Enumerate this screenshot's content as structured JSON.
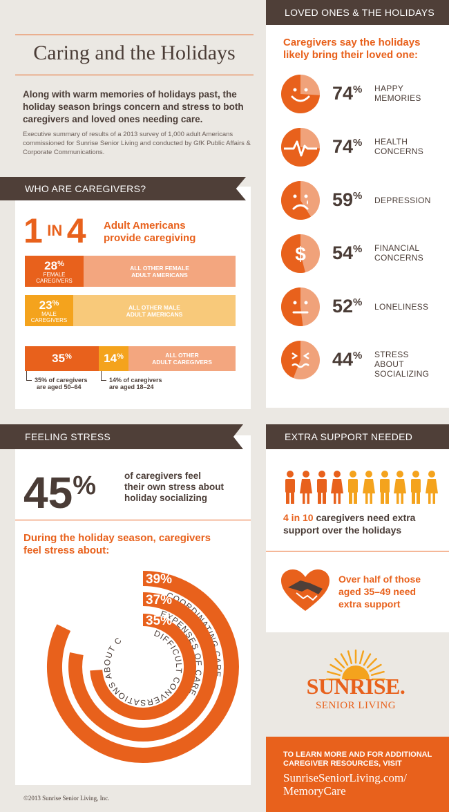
{
  "header": {
    "title": "Caring and the Holidays",
    "intro": "Along with warm memories of holidays past, the holiday season brings concern and stress to both caregivers and loved ones needing care.",
    "summary": "Executive summary of results of a 2013 survey of 1,000 adult Americans commissioned for Sunrise Senior Living and conducted by GfK Public Affairs & Corporate Communications."
  },
  "who": {
    "banner": "WHO ARE CAREGIVERS?",
    "big_1": "1",
    "big_in": "IN",
    "big_4": "4",
    "headline_1": "Adult Americans",
    "headline_2": "provide caregiving",
    "female": {
      "pct": "28",
      "unit": "%",
      "label_1": "FEMALE",
      "label_2": "CAREGIVERS",
      "other_1": "ALL OTHER FEMALE",
      "other_2": "ADULT AMERICANS",
      "value": 28
    },
    "male": {
      "pct": "23",
      "unit": "%",
      "label_1": "MALE",
      "label_2": "CAREGIVERS",
      "other_1": "ALL OTHER MALE",
      "other_2": "ADULT AMERICANS",
      "value": 23
    },
    "age": {
      "a_pct": "35",
      "b_pct": "14",
      "unit": "%",
      "other_1": "ALL OTHER",
      "other_2": "ADULT CAREGIVERS",
      "a_note_1": "35% of caregivers",
      "a_note_2": "are aged 50–64",
      "b_note_1": "14% of caregivers",
      "b_note_2": "are aged 18–24",
      "a_value": 35,
      "b_value": 14
    }
  },
  "loved": {
    "banner": "LOVED ONES & THE HOLIDAYS",
    "headline_1": "Caregivers say the holidays",
    "headline_2": "likely bring their loved one:",
    "unit": "%",
    "items": [
      {
        "icon": "happy-face-icon",
        "pct": "74",
        "value": 74,
        "label_1": "HAPPY",
        "label_2": "MEMORIES"
      },
      {
        "icon": "heartbeat-icon",
        "pct": "74",
        "value": 74,
        "label_1": "HEALTH",
        "label_2": "CONCERNS"
      },
      {
        "icon": "crying-face-icon",
        "pct": "59",
        "value": 59,
        "label_1": "DEPRESSION",
        "label_2": ""
      },
      {
        "icon": "dollar-icon",
        "pct": "54",
        "value": 54,
        "label_1": "FINANCIAL",
        "label_2": "CONCERNS"
      },
      {
        "icon": "neutral-face-icon",
        "pct": "52",
        "value": 52,
        "label_1": "LONELINESS",
        "label_2": ""
      },
      {
        "icon": "stressed-face-icon",
        "pct": "44",
        "value": 44,
        "label_1": "STRESS ABOUT",
        "label_2": "SOCIALIZING"
      }
    ]
  },
  "stress": {
    "banner": "FEELING STRESS",
    "big_pct": "45",
    "unit": "%",
    "desc_1": "of caregivers feel",
    "desc_2": "their own stress about",
    "desc_3": "holiday socializing",
    "headline_1": "During the holiday season, caregivers",
    "headline_2": "feel stress about:",
    "rings": [
      {
        "pct": "39%",
        "value": 39,
        "label": "COORDINATING CARE"
      },
      {
        "pct": "37%",
        "value": 37,
        "label": "EXPENSES OF CARE"
      },
      {
        "pct": "35%",
        "value": 35,
        "label": "DIFFICULT CONVERSATIONS ABOUT CARE"
      }
    ]
  },
  "support": {
    "banner": "EXTRA SUPPORT NEEDED",
    "people_total": 10,
    "people_highlight": 4,
    "stat_1": "4 in 10",
    "stat_rest": " caregivers need extra",
    "stat_2": "support over the holidays",
    "hands_1": "Over half of those",
    "hands_2": "aged 35–49 need",
    "hands_3": "extra support"
  },
  "brand": {
    "name": "SUNRISE.",
    "sub": "SENIOR LIVING"
  },
  "cta": {
    "line_1": "TO LEARN MORE AND FOR ADDITIONAL",
    "line_2": "CAREGIVER RESOURCES, VISIT",
    "url_1": "SunriseSeniorLiving.com/",
    "url_2": "MemoryCare"
  },
  "footer": {
    "copyright": "©2013 Sunrise Senior Living, Inc."
  },
  "colors": {
    "orange": "#e8611c",
    "dark": "#4f3f38",
    "light_orange": "#f0a27a",
    "yellow": "#f4a31d",
    "pale_yellow": "#f8c97a"
  }
}
